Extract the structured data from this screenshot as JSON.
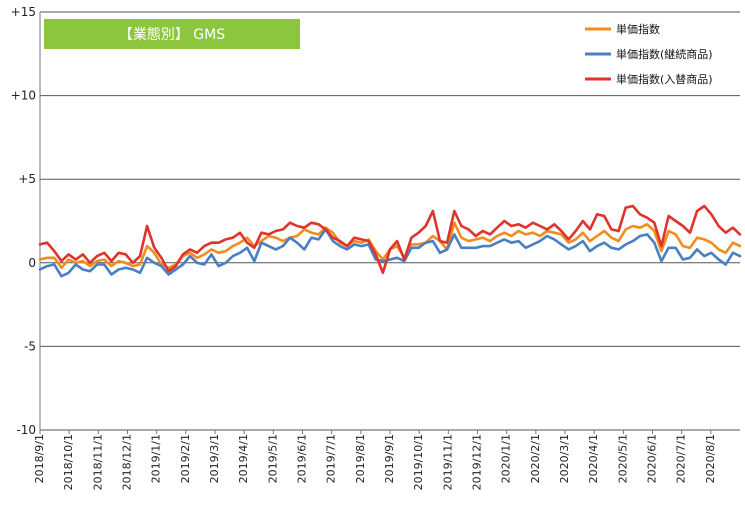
{
  "chart_data": {
    "type": "line",
    "title": "【業態別】 GMS",
    "title_bg_color": "#8cc63f",
    "ylim": [
      -10,
      15
    ],
    "y_ticks": [
      {
        "value": 15,
        "label": "+15"
      },
      {
        "value": 10,
        "label": "+10"
      },
      {
        "value": 5,
        "label": "+5"
      },
      {
        "value": 0,
        "label": "0"
      },
      {
        "value": -5,
        "label": "-5"
      },
      {
        "value": -10,
        "label": "-10"
      }
    ],
    "x_tick_labels": [
      "2018/9/1",
      "2018/10/1",
      "2018/11/1",
      "2018/12/1",
      "2019/1/1",
      "2019/2/1",
      "2019/3/1",
      "2019/4/1",
      "2019/5/1",
      "2019/6/1",
      "2019/7/1",
      "2019/8/1",
      "2019/9/1",
      "2019/10/1",
      "2019/11/1",
      "2019/12/1",
      "2020/1/1",
      "2020/2/1",
      "2020/3/1",
      "2020/4/1",
      "2020/5/1",
      "2020/6/1",
      "2020/7/1",
      "2020/8/1"
    ],
    "grid": "horizontal",
    "legend_position": "top-right",
    "series": [
      {
        "name": "単価指数",
        "color": "#f28c1e",
        "values": [
          0.2,
          0.3,
          0.3,
          -0.3,
          0.2,
          0.0,
          0.1,
          -0.2,
          0.1,
          0.2,
          -0.2,
          0.1,
          0.0,
          -0.2,
          -0.1,
          1.0,
          0.6,
          -0.1,
          -0.3,
          -0.1,
          0.4,
          0.6,
          0.3,
          0.5,
          0.8,
          0.6,
          0.7,
          1.0,
          1.2,
          1.5,
          1.0,
          1.3,
          1.6,
          1.5,
          1.3,
          1.5,
          1.6,
          2.0,
          1.8,
          1.7,
          2.1,
          1.8,
          1.2,
          1.0,
          1.3,
          1.2,
          1.4,
          0.7,
          0.2,
          0.8,
          1.0,
          0.3,
          1.1,
          1.1,
          1.2,
          1.6,
          1.3,
          0.8,
          2.4,
          1.5,
          1.3,
          1.4,
          1.5,
          1.3,
          1.6,
          1.8,
          1.6,
          1.9,
          1.7,
          1.8,
          1.6,
          1.9,
          1.8,
          1.7,
          1.2,
          1.4,
          1.8,
          1.3,
          1.6,
          1.9,
          1.5,
          1.3,
          2.0,
          2.2,
          2.1,
          2.3,
          1.9,
          0.7,
          1.9,
          1.7,
          1.0,
          0.9,
          1.5,
          1.4,
          1.2,
          0.8,
          0.6,
          1.2,
          1.0
        ]
      },
      {
        "name": "単価指数(継続商品)",
        "color": "#4a7fc1",
        "values": [
          -0.4,
          -0.2,
          -0.1,
          -0.8,
          -0.6,
          -0.1,
          -0.4,
          -0.5,
          -0.1,
          -0.1,
          -0.7,
          -0.4,
          -0.3,
          -0.4,
          -0.6,
          0.3,
          0.0,
          -0.2,
          -0.7,
          -0.4,
          -0.1,
          0.4,
          0.0,
          -0.1,
          0.5,
          -0.2,
          0.0,
          0.4,
          0.6,
          0.9,
          0.1,
          1.2,
          1.0,
          0.8,
          1.0,
          1.5,
          1.2,
          0.8,
          1.5,
          1.4,
          2.0,
          1.3,
          1.0,
          0.8,
          1.1,
          1.0,
          1.1,
          0.2,
          0.1,
          0.2,
          0.3,
          0.1,
          0.9,
          0.9,
          1.2,
          1.3,
          0.6,
          0.8,
          1.7,
          0.9,
          0.9,
          0.9,
          1.0,
          1.0,
          1.2,
          1.4,
          1.2,
          1.3,
          0.9,
          1.1,
          1.3,
          1.6,
          1.4,
          1.1,
          0.8,
          1.0,
          1.3,
          0.7,
          1.0,
          1.2,
          0.9,
          0.8,
          1.1,
          1.3,
          1.6,
          1.7,
          1.2,
          0.1,
          0.9,
          0.9,
          0.2,
          0.3,
          0.8,
          0.4,
          0.6,
          0.2,
          -0.1,
          0.6,
          0.4
        ]
      },
      {
        "name": "単価指数(入替商品)",
        "color": "#e0332b",
        "values": [
          1.1,
          1.2,
          0.7,
          0.1,
          0.5,
          0.2,
          0.5,
          0.0,
          0.4,
          0.6,
          0.1,
          0.6,
          0.5,
          0.0,
          0.4,
          2.2,
          0.9,
          0.3,
          -0.5,
          -0.2,
          0.5,
          0.8,
          0.6,
          1.0,
          1.2,
          1.2,
          1.4,
          1.5,
          1.8,
          1.2,
          0.9,
          1.8,
          1.7,
          1.9,
          2.0,
          2.4,
          2.2,
          2.1,
          2.4,
          2.3,
          2.0,
          1.5,
          1.3,
          1.0,
          1.5,
          1.4,
          1.3,
          0.5,
          -0.6,
          0.8,
          1.3,
          0.2,
          1.5,
          1.8,
          2.2,
          3.1,
          1.3,
          1.2,
          3.1,
          2.2,
          2.0,
          1.6,
          1.9,
          1.7,
          2.1,
          2.5,
          2.2,
          2.3,
          2.1,
          2.4,
          2.2,
          2.0,
          2.3,
          1.9,
          1.4,
          1.9,
          2.5,
          2.0,
          2.9,
          2.8,
          2.0,
          1.9,
          3.3,
          3.4,
          2.9,
          2.7,
          2.4,
          1.0,
          2.8,
          2.5,
          2.2,
          1.8,
          3.1,
          3.4,
          2.9,
          2.2,
          1.8,
          2.1,
          1.7
        ]
      }
    ]
  }
}
